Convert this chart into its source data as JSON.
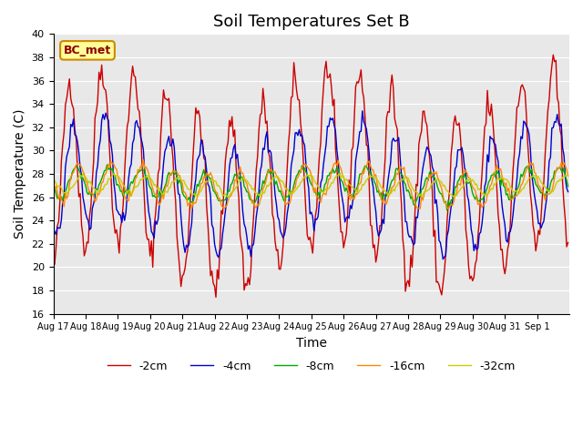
{
  "title": "Soil Temperatures Set B",
  "xlabel": "Time",
  "ylabel": "Soil Temperature (C)",
  "ylim": [
    16,
    40
  ],
  "yticks": [
    16,
    18,
    20,
    22,
    24,
    26,
    28,
    30,
    32,
    34,
    36,
    38,
    40
  ],
  "x_labels": [
    "Aug 17",
    "Aug 18",
    "Aug 19",
    "Aug 20",
    "Aug 21",
    "Aug 22",
    "Aug 23",
    "Aug 24",
    "Aug 25",
    "Aug 26",
    "Aug 27",
    "Aug 28",
    "Aug 29",
    "Aug 30",
    "Aug 31",
    "Sep 1"
  ],
  "series_labels": [
    "-2cm",
    "-4cm",
    "-8cm",
    "-16cm",
    "-32cm"
  ],
  "series_colors": [
    "#cc0000",
    "#0000cc",
    "#00aa00",
    "#ff8800",
    "#cccc00"
  ],
  "annotation_text": "BC_met",
  "background_color": "#e8e8e8",
  "title_fontsize": 13,
  "axis_fontsize": 10,
  "legend_fontsize": 9,
  "n_points": 384,
  "days": 16
}
